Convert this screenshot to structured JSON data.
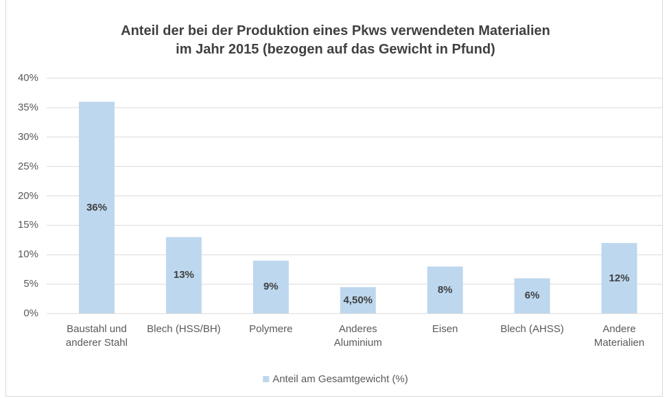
{
  "chart_data": {
    "type": "bar",
    "title": [
      "Anteil der bei der Produktion eines Pkws verwendeten Materialien",
      "im Jahr 2015 (bezogen auf das Gewicht in Pfund)"
    ],
    "categories": [
      "Baustahl und anderer Stahl",
      "Blech (HSS/BH)",
      "Polymere",
      "Anderes Aluminium",
      "Eisen",
      "Blech (AHSS)",
      "Andere Materialien"
    ],
    "series": [
      {
        "name": "Anteil am Gesamtgewicht (%)",
        "color": "#bdd7ee",
        "values": [
          36,
          13,
          9,
          4.5,
          8,
          6,
          12
        ],
        "value_labels": [
          "36%",
          "13%",
          "9%",
          "4,50%",
          "8%",
          "6%",
          "12%"
        ]
      }
    ],
    "ylim": [
      0,
      40
    ],
    "yticks": [
      {
        "value": 0,
        "label": "0%"
      },
      {
        "value": 5,
        "label": "5%"
      },
      {
        "value": 10,
        "label": "10%"
      },
      {
        "value": 15,
        "label": "15%"
      },
      {
        "value": 20,
        "label": "20%"
      },
      {
        "value": 25,
        "label": "25%"
      },
      {
        "value": 30,
        "label": "30%"
      },
      {
        "value": 35,
        "label": "35%"
      },
      {
        "value": 40,
        "label": "40%"
      }
    ],
    "grid": true,
    "legend": "bottom"
  }
}
